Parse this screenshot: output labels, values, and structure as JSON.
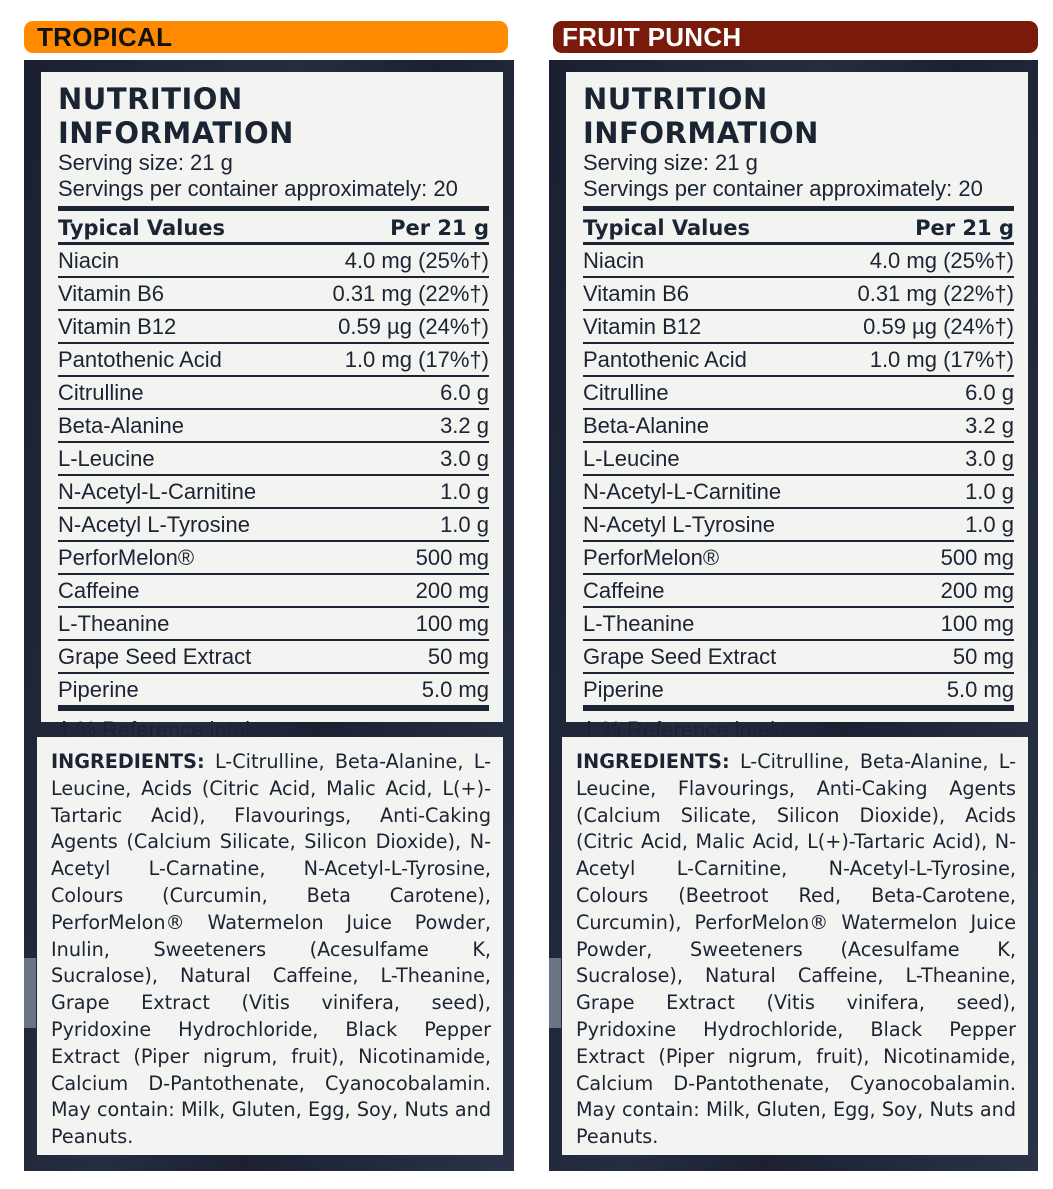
{
  "panels": [
    {
      "flavor": "TROPICAL",
      "banner_color": "#ff8a00",
      "title": "NUTRITION INFORMATION",
      "serving_size": "Serving size: 21 g",
      "servings_per_container": "Servings per container approximately: 20",
      "header_left": "Typical Values",
      "header_right": "Per 21 g",
      "rows": [
        {
          "name": "Niacin",
          "value": "4.0 mg (25%†)"
        },
        {
          "name": "Vitamin B6",
          "value": "0.31 mg (22%†)"
        },
        {
          "name": "Vitamin B12",
          "value": "0.59 µg (24%†)"
        },
        {
          "name": "Pantothenic Acid",
          "value": "1.0 mg (17%†)"
        },
        {
          "name": "Citrulline",
          "value": "6.0 g"
        },
        {
          "name": "Beta-Alanine",
          "value": "3.2 g"
        },
        {
          "name": "L-Leucine",
          "value": "3.0 g"
        },
        {
          "name": "N-Acetyl-L-Carnitine",
          "value": "1.0 g"
        },
        {
          "name": "N-Acetyl L-Tyrosine",
          "value": "1.0 g"
        },
        {
          "name": "PerforMelon®",
          "value": "500 mg"
        },
        {
          "name": "Caffeine",
          "value": "200 mg"
        },
        {
          "name": "L-Theanine",
          "value": "100 mg"
        },
        {
          "name": "Grape Seed Extract",
          "value": "50 mg"
        },
        {
          "name": "Piperine",
          "value": "5.0 mg"
        }
      ],
      "footnote": "† % Reference intake",
      "ingredients_label": "INGREDIENTS:",
      "ingredients_text": "L-Citrulline, Beta-Alanine, L-Leucine, Acids (Citric Acid, Malic Acid, L(+)-Tartaric Acid), Flavourings, Anti-Caking Agents (Calcium Silicate, Silicon Dioxide), N-Acetyl L-Carnatine, N-Acetyl-L-Tyrosine, Colours (Curcumin, Beta Carotene), PerforMelon® Watermelon Juice Powder, Inulin, Sweeteners (Acesulfame K, Sucralose), Natural Caffeine, L-Theanine, Grape Extract (Vitis vinifera, seed), Pyridoxine Hydrochloride, Black Pepper Extract (Piper nigrum, fruit), Nicotinamide, Calcium D-Pantothenate, Cyanocobalamin. May contain: Milk, Gluten, Egg, Soy, Nuts and Peanuts."
    },
    {
      "flavor": "FRUIT PUNCH",
      "banner_color": "#7a1a0b",
      "title": "NUTRITION INFORMATION",
      "serving_size": "Serving size: 21 g",
      "servings_per_container": "Servings per container approximately: 20",
      "header_left": "Typical Values",
      "header_right": "Per 21 g",
      "rows": [
        {
          "name": "Niacin",
          "value": "4.0 mg (25%†)"
        },
        {
          "name": "Vitamin B6",
          "value": "0.31 mg (22%†)"
        },
        {
          "name": "Vitamin B12",
          "value": "0.59 µg (24%†)"
        },
        {
          "name": "Pantothenic Acid",
          "value": "1.0 mg (17%†)"
        },
        {
          "name": "Citrulline",
          "value": "6.0 g"
        },
        {
          "name": "Beta-Alanine",
          "value": "3.2 g"
        },
        {
          "name": "L-Leucine",
          "value": "3.0 g"
        },
        {
          "name": "N-Acetyl-L-Carnitine",
          "value": "1.0 g"
        },
        {
          "name": "N-Acetyl L-Tyrosine",
          "value": "1.0 g"
        },
        {
          "name": "PerforMelon®",
          "value": "500 mg"
        },
        {
          "name": "Caffeine",
          "value": "200 mg"
        },
        {
          "name": "L-Theanine",
          "value": "100 mg"
        },
        {
          "name": "Grape Seed Extract",
          "value": "50 mg"
        },
        {
          "name": "Piperine",
          "value": "5.0 mg"
        }
      ],
      "footnote": "† % Reference intake",
      "ingredients_label": "INGREDIENTS:",
      "ingredients_text": "L-Citrulline, Beta-Alanine, L-Leucine, Flavourings, Anti-Caking Agents (Calcium Silicate, Silicon Dioxide), Acids (Citric Acid, Malic Acid, L(+)-Tartaric Acid), N-Acetyl L-Carnitine, N-Acetyl-L-Tyrosine, Colours (Beetroot Red, Beta-Carotene, Curcumin), PerforMelon® Watermelon Juice Powder, Sweeteners (Acesulfame K, Sucralose), Natural Caffeine, L-Theanine, Grape Extract (Vitis vinifera, seed), Pyridoxine Hydrochloride, Black Pepper Extract (Piper nigrum, fruit), Nicotinamide, Calcium D-Pantothenate, Cyanocobalamin. May contain: Milk, Gluten, Egg, Soy, Nuts and Peanuts."
    }
  ]
}
